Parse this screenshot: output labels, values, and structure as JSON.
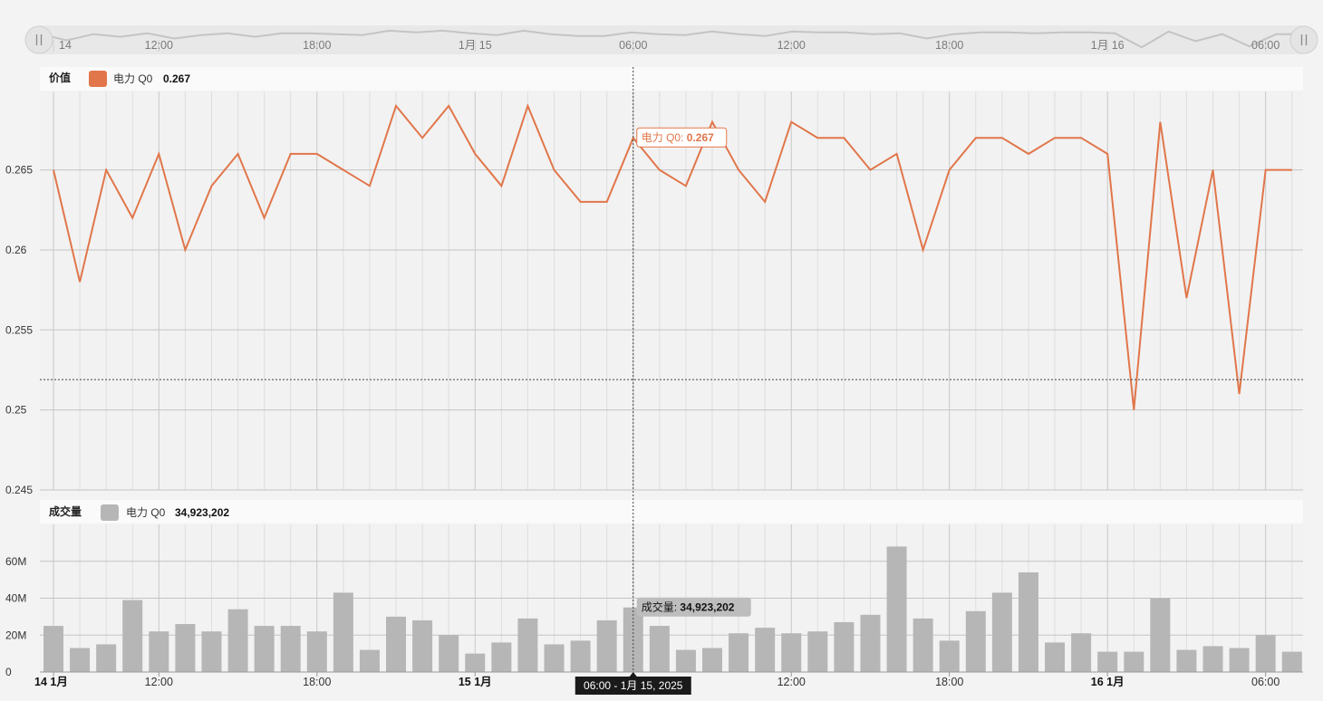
{
  "chart_data": [
    {
      "type": "line",
      "panel_title": "价值",
      "series": [
        {
          "name": "电力 Q0",
          "color": "#e1764a",
          "last_value_label": "0.267",
          "values": [
            0.265,
            0.258,
            0.265,
            0.262,
            0.266,
            0.26,
            0.264,
            0.266,
            0.262,
            0.266,
            0.266,
            0.265,
            0.264,
            0.269,
            0.267,
            0.269,
            0.266,
            0.264,
            0.269,
            0.265,
            0.263,
            0.263,
            0.267,
            0.265,
            0.264,
            0.268,
            0.265,
            0.263,
            0.268,
            0.267,
            0.267,
            0.265,
            0.266,
            0.26,
            0.265,
            0.267,
            0.267,
            0.266,
            0.267,
            0.267,
            0.266,
            0.25,
            0.268,
            0.257,
            0.265,
            0.251,
            0.265,
            0.265
          ]
        }
      ],
      "yticks": [
        "0.245",
        "0.25",
        "0.255",
        "0.26",
        "0.265"
      ],
      "ylim": [
        0.245,
        0.2699
      ],
      "grid": true,
      "crosshair_y_value": 0.2519,
      "tooltip": {
        "label": "电力 Q0: ",
        "value": "0.267"
      }
    },
    {
      "type": "bar",
      "panel_title": "成交量",
      "series": [
        {
          "name": "电力 Q0",
          "color": "#b6b6b6",
          "last_value_label": "34,923,202",
          "values": [
            25,
            13,
            15,
            39,
            22,
            26,
            22,
            34,
            25,
            25,
            22,
            43,
            12,
            30,
            28,
            20,
            10,
            16,
            29,
            15,
            17,
            28,
            35,
            25,
            12,
            13,
            21,
            24,
            21,
            22,
            27,
            31,
            68,
            29,
            17,
            33,
            43,
            54,
            16,
            21,
            11,
            11,
            40,
            12,
            14,
            13,
            20,
            11
          ]
        }
      ],
      "value_unit": "M",
      "yticks": [
        "0",
        "20M",
        "40M",
        "60M"
      ],
      "ylim": [
        0,
        80
      ],
      "grid": true,
      "tooltip": {
        "label": "成交量: ",
        "value": "34,923,202"
      }
    }
  ],
  "time_axis": {
    "labels": [
      {
        "text": "14 1月",
        "bold": true,
        "index": 0
      },
      {
        "text": "12:00",
        "bold": false,
        "index": 4
      },
      {
        "text": "18:00",
        "bold": false,
        "index": 10
      },
      {
        "text": "15 1月",
        "bold": true,
        "index": 16
      },
      {
        "text": "06:00",
        "bold": false,
        "index": 22
      },
      {
        "text": "12:00",
        "bold": false,
        "index": 28
      },
      {
        "text": "18:00",
        "bold": false,
        "index": 34
      },
      {
        "text": "16 1月",
        "bold": true,
        "index": 40
      },
      {
        "text": "06:00",
        "bold": false,
        "index": 46
      }
    ],
    "crosshair_index": 22,
    "crosshair_label": "06:00 - 1月 15, 2025"
  },
  "navigator": {
    "labels": [
      {
        "text": "14",
        "index": 0
      },
      {
        "text": "12:00",
        "index": 4
      },
      {
        "text": "18:00",
        "index": 10
      },
      {
        "text": "1月 15",
        "index": 16
      },
      {
        "text": "06:00",
        "index": 22
      },
      {
        "text": "12:00",
        "index": 28
      },
      {
        "text": "18:00",
        "index": 34
      },
      {
        "text": "1月 16",
        "index": 40
      },
      {
        "text": "06:00",
        "index": 46
      }
    ],
    "left_handle_icon": "pause-icon",
    "right_handle_icon": "pause-icon"
  }
}
